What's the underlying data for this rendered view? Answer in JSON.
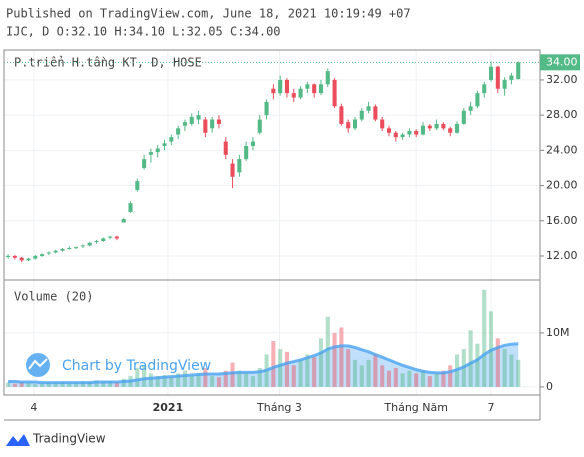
{
  "header": {
    "published": "Published on TradingView.com, June 18, 2021 10:19:49 +07",
    "ohlc_line": "IJC, D O:32.10 H:34.10 L:32.05 C:34.00"
  },
  "footer": {
    "brand": "TradingView"
  },
  "chart_data": {
    "type": "candlestick",
    "legend": "P.triển H.tầng KT, D, HOSE",
    "volume_label": "Volume (20)",
    "watermark": "Chart by TradingView",
    "up_color": "#53b987",
    "down_color": "#eb4d5c",
    "ma_color": "#4aa3f0",
    "last_price": {
      "value": 34,
      "label": "34.00"
    },
    "xlim": [
      -0.6,
      78.2
    ],
    "xticks": [
      {
        "value": 3.8,
        "label": "4"
      },
      {
        "value": 23.5,
        "label": "2021"
      },
      {
        "value": 39.9,
        "label": "Tháng 3"
      },
      {
        "value": 60,
        "label": "Tháng Năm"
      },
      {
        "value": 71,
        "label": "7"
      }
    ],
    "ylim": [
      9.27,
      35.4
    ],
    "yticks": [
      {
        "value": 12,
        "label": "12.00"
      },
      {
        "value": 16,
        "label": "16.00"
      },
      {
        "value": 20,
        "label": "20.00"
      },
      {
        "value": 24,
        "label": "24.00"
      },
      {
        "value": 28,
        "label": "28.00"
      },
      {
        "value": 32,
        "label": "32.00"
      }
    ],
    "vol_ylim": [
      -1.5,
      19.8
    ],
    "vol_yticks": [
      0,
      {
        "value": 10,
        "label": "10M"
      }
    ],
    "grid": true,
    "series": [
      {
        "name": "IJC",
        "ohlc": [
          [
            11.9,
            12.2,
            11.7,
            12.0
          ],
          [
            12.0,
            12.1,
            11.6,
            11.8
          ],
          [
            11.8,
            11.9,
            11.3,
            11.5
          ],
          [
            11.5,
            11.8,
            11.4,
            11.7
          ],
          [
            11.7,
            12.1,
            11.6,
            12.0
          ],
          [
            12.0,
            12.3,
            11.9,
            12.2
          ],
          [
            12.3,
            12.5,
            12.1,
            12.4
          ],
          [
            12.4,
            12.7,
            12.3,
            12.6
          ],
          [
            12.6,
            12.9,
            12.5,
            12.8
          ],
          [
            12.9,
            13.1,
            12.7,
            12.9
          ],
          [
            12.9,
            13.1,
            12.8,
            13.0
          ],
          [
            13.1,
            13.3,
            12.9,
            13.2
          ],
          [
            13.2,
            13.6,
            13.1,
            13.5
          ],
          [
            13.6,
            13.8,
            13.4,
            13.7
          ],
          [
            13.7,
            14.1,
            13.6,
            14.0
          ],
          [
            14.1,
            14.3,
            13.9,
            14.2
          ],
          [
            14.2,
            14.3,
            13.8,
            14.0
          ],
          [
            15.8,
            16.3,
            15.8,
            16.2
          ],
          [
            17.0,
            18.2,
            16.9,
            18.0
          ],
          [
            19.5,
            20.8,
            19.3,
            20.5
          ],
          [
            22.0,
            23.5,
            21.8,
            23.0
          ],
          [
            23.5,
            24.2,
            22.6,
            23.8
          ],
          [
            23.8,
            24.6,
            23.2,
            24.2
          ],
          [
            24.5,
            25.2,
            24.0,
            24.8
          ],
          [
            25.0,
            25.8,
            24.6,
            25.5
          ],
          [
            25.8,
            26.8,
            25.3,
            26.5
          ],
          [
            26.8,
            27.5,
            26.2,
            27.2
          ],
          [
            27.0,
            28.2,
            26.8,
            27.8
          ],
          [
            27.5,
            28.5,
            27.0,
            28.0
          ],
          [
            27.5,
            27.8,
            25.5,
            26.0
          ],
          [
            26.5,
            27.8,
            26.0,
            27.5
          ],
          [
            27.5,
            28.0,
            26.5,
            27.0
          ],
          [
            25.0,
            25.5,
            23.0,
            23.5
          ],
          [
            22.5,
            23.0,
            19.7,
            21.0
          ],
          [
            21.5,
            23.5,
            21.0,
            23.0
          ],
          [
            23.0,
            25.0,
            22.8,
            24.5
          ],
          [
            24.5,
            25.5,
            24.0,
            25.0
          ],
          [
            26.0,
            28.0,
            25.8,
            27.5
          ],
          [
            28.0,
            29.8,
            27.5,
            29.5
          ],
          [
            31.0,
            31.5,
            29.8,
            30.5
          ],
          [
            30.5,
            32.5,
            30.2,
            32.0
          ],
          [
            32.0,
            32.2,
            30.0,
            30.5
          ],
          [
            30.5,
            31.0,
            29.5,
            30.0
          ],
          [
            30.0,
            31.3,
            29.8,
            31.0
          ],
          [
            31.0,
            31.8,
            30.5,
            31.5
          ],
          [
            31.5,
            31.6,
            30.0,
            30.5
          ],
          [
            30.5,
            32.0,
            30.3,
            31.5
          ],
          [
            31.5,
            33.3,
            31.2,
            33.0
          ],
          [
            32.0,
            32.2,
            28.8,
            29.0
          ],
          [
            29.0,
            29.3,
            26.8,
            27.0
          ],
          [
            27.2,
            27.5,
            26.0,
            26.5
          ],
          [
            26.5,
            27.8,
            26.3,
            27.5
          ],
          [
            27.5,
            28.8,
            27.3,
            28.5
          ],
          [
            28.5,
            29.5,
            28.2,
            29.0
          ],
          [
            29.0,
            29.2,
            27.3,
            27.5
          ],
          [
            27.5,
            27.8,
            26.2,
            26.5
          ],
          [
            26.5,
            26.8,
            25.6,
            26.0
          ],
          [
            26.0,
            26.2,
            25.0,
            25.5
          ],
          [
            25.5,
            26.0,
            25.2,
            25.8
          ],
          [
            25.8,
            26.5,
            25.5,
            26.2
          ],
          [
            26.2,
            26.4,
            25.5,
            25.8
          ],
          [
            25.8,
            27.2,
            25.7,
            26.8
          ],
          [
            26.8,
            27.0,
            26.2,
            26.5
          ],
          [
            26.5,
            27.5,
            26.3,
            27.0
          ],
          [
            27.0,
            27.2,
            26.3,
            26.5
          ],
          [
            26.5,
            26.7,
            25.6,
            26.0
          ],
          [
            26.0,
            27.3,
            25.9,
            27.0
          ],
          [
            27.0,
            28.8,
            26.9,
            28.5
          ],
          [
            28.5,
            29.5,
            28.0,
            29.0
          ],
          [
            29.0,
            30.8,
            28.8,
            30.5
          ],
          [
            30.5,
            31.8,
            30.0,
            31.5
          ],
          [
            32.0,
            34.1,
            31.8,
            33.5
          ],
          [
            33.5,
            33.6,
            30.5,
            31.0
          ],
          [
            31.0,
            32.3,
            30.2,
            32.0
          ],
          [
            32.0,
            32.8,
            31.5,
            32.5
          ],
          [
            32.1,
            34.1,
            32.05,
            34.0
          ]
        ],
        "volume": [
          0.8,
          0.6,
          0.9,
          0.7,
          0.5,
          0.6,
          0.8,
          0.7,
          0.9,
          0.6,
          0.8,
          1.0,
          0.9,
          1.2,
          1.0,
          1.1,
          0.9,
          1.5,
          2.0,
          3.5,
          4.0,
          2.5,
          2.0,
          2.2,
          1.8,
          2.5,
          3.0,
          2.0,
          2.5,
          3.5,
          2.0,
          1.8,
          3.0,
          4.5,
          3.0,
          2.5,
          2.0,
          3.5,
          6.0,
          8.5,
          7.0,
          6.5,
          4.0,
          5.0,
          6.0,
          5.5,
          9.0,
          13.0,
          10.0,
          11.0,
          7.0,
          5.0,
          4.0,
          5.0,
          6.0,
          4.0,
          3.0,
          3.5,
          2.5,
          3.0,
          2.5,
          3.0,
          2.0,
          2.5,
          3.0,
          4.0,
          6.0,
          7.0,
          10.5,
          8.0,
          18.0,
          14.0,
          9.0,
          7.0,
          6.0,
          5.0
        ],
        "volume_ma": [
          1.0,
          1.0,
          0.9,
          0.9,
          0.9,
          0.8,
          0.8,
          0.8,
          0.8,
          0.8,
          0.8,
          0.8,
          0.8,
          0.9,
          0.9,
          0.9,
          0.9,
          1.0,
          1.1,
          1.3,
          1.5,
          1.6,
          1.7,
          1.8,
          1.9,
          2.0,
          2.1,
          2.2,
          2.3,
          2.4,
          2.4,
          2.4,
          2.5,
          2.6,
          2.7,
          2.7,
          2.7,
          2.8,
          3.1,
          3.6,
          4.0,
          4.4,
          4.7,
          5.0,
          5.4,
          5.8,
          6.3,
          7.0,
          7.4,
          7.6,
          7.6,
          7.3,
          6.9,
          6.5,
          6.0,
          5.5,
          5.0,
          4.5,
          4.0,
          3.6,
          3.2,
          2.9,
          2.7,
          2.6,
          2.6,
          2.8,
          3.2,
          3.7,
          4.4,
          5.0,
          6.0,
          6.8,
          7.3,
          7.7,
          7.9,
          8.0
        ]
      }
    ]
  }
}
